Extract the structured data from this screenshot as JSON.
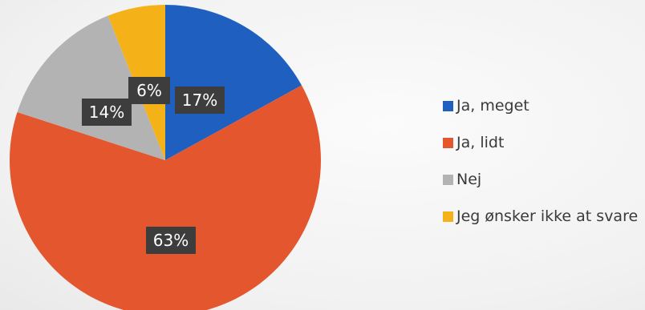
{
  "chart_data": {
    "type": "pie",
    "categories": [
      "Ja, meget",
      "Ja, lidt",
      "Nej",
      "Jeg ønsker ikke at svare"
    ],
    "values": [
      17,
      63,
      14,
      6
    ],
    "labels": [
      "17%",
      "63%",
      "14%",
      "6%"
    ],
    "colors": [
      "#1f5fbf",
      "#e4572e",
      "#b3b3b3",
      "#f5b218"
    ],
    "legend_position": "right",
    "start_angle_deg": 0,
    "direction": "clockwise"
  }
}
